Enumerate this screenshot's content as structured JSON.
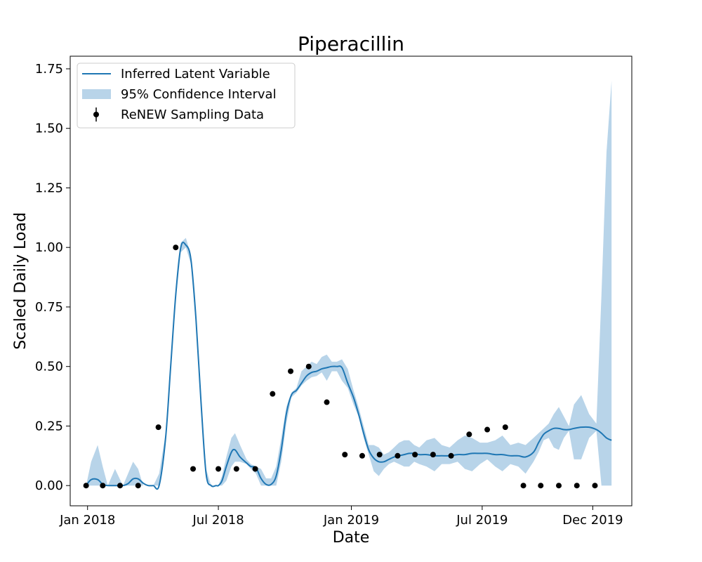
{
  "chart_data": {
    "type": "line",
    "title": "Piperacillin",
    "xlabel": "Date",
    "ylabel": "Scaled Daily Load",
    "xlim": [
      "2017-12-08",
      "2020-01-24"
    ],
    "ylim": [
      -0.085,
      1.803
    ],
    "x_ticks": [
      "2018-01-01",
      "2018-07-01",
      "2019-01-01",
      "2019-07-01",
      "2019-12-01"
    ],
    "x_tick_labels": [
      "Jan 2018",
      "Jul 2018",
      "Jan 2019",
      "Jul 2019",
      "Dec 2019"
    ],
    "y_ticks": [
      0.0,
      0.25,
      0.5,
      0.75,
      1.0,
      1.25,
      1.5,
      1.75
    ],
    "y_tick_labels": [
      "0.00",
      "0.25",
      "0.50",
      "0.75",
      "1.00",
      "1.25",
      "1.50",
      "1.75"
    ],
    "grid": false,
    "legend": {
      "placement": "upper-left",
      "entries": [
        "Inferred Latent Variable",
        "95% Confidence Interval",
        "ReNEW Sampling Data"
      ]
    },
    "colors": {
      "line": "#1f77b4",
      "band": "#b8d4e9",
      "points": "#000000",
      "axes": "#000000"
    },
    "series": [
      {
        "name": "Inferred Latent Variable",
        "kind": "line",
        "x": [
          "2017-12-30",
          "2018-01-06",
          "2018-01-15",
          "2018-01-22",
          "2018-01-29",
          "2018-02-08",
          "2018-02-19",
          "2018-02-26",
          "2018-03-05",
          "2018-03-12",
          "2018-03-19",
          "2018-03-26",
          "2018-04-02",
          "2018-04-10",
          "2018-04-19",
          "2018-04-26",
          "2018-05-03",
          "2018-05-10",
          "2018-05-17",
          "2018-05-24",
          "2018-05-31",
          "2018-06-07",
          "2018-06-14",
          "2018-06-21",
          "2018-06-28",
          "2018-07-01",
          "2018-07-06",
          "2018-07-12",
          "2018-07-19",
          "2018-07-24",
          "2018-07-31",
          "2018-08-09",
          "2018-08-15",
          "2018-08-22",
          "2018-08-29",
          "2018-09-05",
          "2018-09-12",
          "2018-09-19",
          "2018-09-26",
          "2018-10-03",
          "2018-10-10",
          "2018-10-17",
          "2018-10-24",
          "2018-10-31",
          "2018-11-07",
          "2018-11-14",
          "2018-11-21",
          "2018-11-28",
          "2018-12-05",
          "2018-12-12",
          "2018-12-19",
          "2018-12-27",
          "2019-01-04",
          "2019-01-11",
          "2019-01-18",
          "2019-01-25",
          "2019-02-01",
          "2019-02-08",
          "2019-02-15",
          "2019-02-22",
          "2019-03-01",
          "2019-03-08",
          "2019-03-15",
          "2019-03-22",
          "2019-03-29",
          "2019-04-05",
          "2019-04-15",
          "2019-04-26",
          "2019-05-06",
          "2019-05-17",
          "2019-05-28",
          "2019-06-07",
          "2019-06-17",
          "2019-06-28",
          "2019-07-08",
          "2019-07-19",
          "2019-07-29",
          "2019-08-09",
          "2019-08-20",
          "2019-08-30",
          "2019-09-10",
          "2019-09-17",
          "2019-09-24",
          "2019-10-01",
          "2019-10-08",
          "2019-10-15",
          "2019-10-22",
          "2019-10-29",
          "2019-11-05",
          "2019-11-15",
          "2019-11-26",
          "2019-12-06",
          "2019-12-13",
          "2019-12-20",
          "2019-12-27"
        ],
        "y": [
          0.0,
          0.025,
          0.025,
          0.005,
          0.0,
          0.0,
          0.0,
          0.008,
          0.028,
          0.028,
          0.01,
          0.0,
          0.0,
          0.0,
          0.2,
          0.5,
          0.8,
          1.0,
          1.01,
          0.95,
          0.7,
          0.35,
          0.05,
          0.0,
          0.0,
          0.0,
          0.02,
          0.08,
          0.14,
          0.15,
          0.12,
          0.095,
          0.08,
          0.075,
          0.03,
          0.005,
          0.005,
          0.04,
          0.15,
          0.3,
          0.38,
          0.4,
          0.43,
          0.46,
          0.475,
          0.48,
          0.49,
          0.495,
          0.5,
          0.5,
          0.495,
          0.43,
          0.37,
          0.3,
          0.22,
          0.15,
          0.115,
          0.1,
          0.1,
          0.11,
          0.12,
          0.125,
          0.13,
          0.135,
          0.135,
          0.13,
          0.13,
          0.125,
          0.125,
          0.125,
          0.13,
          0.13,
          0.135,
          0.135,
          0.135,
          0.13,
          0.13,
          0.125,
          0.125,
          0.12,
          0.14,
          0.18,
          0.215,
          0.23,
          0.24,
          0.24,
          0.235,
          0.235,
          0.24,
          0.245,
          0.245,
          0.235,
          0.22,
          0.2,
          0.19
        ]
      },
      {
        "name": "95% Confidence Interval",
        "kind": "band",
        "x": [
          "2017-12-30",
          "2018-01-06",
          "2018-01-15",
          "2018-01-22",
          "2018-01-29",
          "2018-02-08",
          "2018-02-19",
          "2018-02-26",
          "2018-03-05",
          "2018-03-12",
          "2018-03-19",
          "2018-03-26",
          "2018-04-02",
          "2018-04-10",
          "2018-04-19",
          "2018-04-26",
          "2018-05-03",
          "2018-05-10",
          "2018-05-17",
          "2018-05-24",
          "2018-05-31",
          "2018-06-07",
          "2018-06-14",
          "2018-06-21",
          "2018-06-28",
          "2018-07-01",
          "2018-07-06",
          "2018-07-12",
          "2018-07-19",
          "2018-07-24",
          "2018-07-31",
          "2018-08-09",
          "2018-08-15",
          "2018-08-22",
          "2018-08-29",
          "2018-09-05",
          "2018-09-12",
          "2018-09-19",
          "2018-09-26",
          "2018-10-03",
          "2018-10-10",
          "2018-10-17",
          "2018-10-24",
          "2018-10-31",
          "2018-11-07",
          "2018-11-14",
          "2018-11-21",
          "2018-11-28",
          "2018-12-05",
          "2018-12-12",
          "2018-12-19",
          "2018-12-27",
          "2019-01-04",
          "2019-01-11",
          "2019-01-18",
          "2019-01-25",
          "2019-02-01",
          "2019-02-08",
          "2019-02-15",
          "2019-02-22",
          "2019-03-01",
          "2019-03-08",
          "2019-03-15",
          "2019-03-22",
          "2019-03-29",
          "2019-04-05",
          "2019-04-15",
          "2019-04-26",
          "2019-05-06",
          "2019-05-17",
          "2019-05-28",
          "2019-06-07",
          "2019-06-17",
          "2019-06-28",
          "2019-07-08",
          "2019-07-19",
          "2019-07-29",
          "2019-08-09",
          "2019-08-20",
          "2019-08-30",
          "2019-09-10",
          "2019-09-17",
          "2019-09-24",
          "2019-10-01",
          "2019-10-08",
          "2019-10-15",
          "2019-10-22",
          "2019-10-29",
          "2019-11-05",
          "2019-11-15",
          "2019-11-26",
          "2019-12-06",
          "2019-12-13",
          "2019-12-20",
          "2019-12-27"
        ],
        "lower": [
          0.0,
          0.0,
          0.0,
          0.0,
          0.0,
          0.0,
          0.0,
          0.0,
          0.0,
          0.0,
          0.0,
          0.0,
          0.0,
          0.0,
          0.18,
          0.48,
          0.78,
          0.98,
          1.0,
          0.93,
          0.67,
          0.32,
          0.03,
          0.0,
          0.0,
          0.0,
          0.0,
          0.02,
          0.08,
          0.1,
          0.1,
          0.09,
          0.07,
          0.05,
          0.0,
          0.0,
          0.0,
          0.0,
          0.1,
          0.26,
          0.37,
          0.39,
          0.42,
          0.44,
          0.455,
          0.46,
          0.475,
          0.44,
          0.48,
          0.48,
          0.44,
          0.41,
          0.34,
          0.29,
          0.2,
          0.13,
          0.06,
          0.04,
          0.07,
          0.09,
          0.1,
          0.09,
          0.08,
          0.08,
          0.1,
          0.09,
          0.08,
          0.06,
          0.09,
          0.09,
          0.1,
          0.07,
          0.06,
          0.09,
          0.11,
          0.08,
          0.06,
          0.09,
          0.08,
          0.05,
          0.1,
          0.14,
          0.19,
          0.2,
          0.16,
          0.15,
          0.2,
          0.23,
          0.11,
          0.11,
          0.2,
          0.23,
          0.0,
          0.0,
          0.0
        ],
        "upper": [
          0.0,
          0.1,
          0.17,
          0.08,
          0.0,
          0.07,
          0.0,
          0.05,
          0.1,
          0.07,
          0.0,
          0.0,
          0.0,
          0.05,
          0.22,
          0.52,
          0.82,
          1.02,
          1.04,
          0.97,
          0.73,
          0.38,
          0.07,
          0.0,
          0.0,
          0.0,
          0.04,
          0.12,
          0.2,
          0.22,
          0.17,
          0.11,
          0.09,
          0.08,
          0.07,
          0.03,
          0.03,
          0.08,
          0.2,
          0.33,
          0.39,
          0.41,
          0.48,
          0.5,
          0.52,
          0.51,
          0.54,
          0.55,
          0.52,
          0.52,
          0.53,
          0.49,
          0.4,
          0.33,
          0.25,
          0.17,
          0.17,
          0.16,
          0.13,
          0.14,
          0.16,
          0.18,
          0.19,
          0.19,
          0.17,
          0.16,
          0.19,
          0.2,
          0.17,
          0.16,
          0.19,
          0.21,
          0.2,
          0.18,
          0.18,
          0.19,
          0.21,
          0.17,
          0.18,
          0.17,
          0.2,
          0.22,
          0.24,
          0.26,
          0.3,
          0.33,
          0.29,
          0.25,
          0.34,
          0.38,
          0.3,
          0.26,
          0.8,
          1.4,
          1.7
        ]
      },
      {
        "name": "ReNEW Sampling Data",
        "kind": "points",
        "x": [
          "2017-12-30",
          "2018-01-22",
          "2018-02-15",
          "2018-03-12",
          "2018-04-09",
          "2018-05-03",
          "2018-05-27",
          "2018-07-01",
          "2018-07-26",
          "2018-08-21",
          "2018-09-14",
          "2018-10-09",
          "2018-11-03",
          "2018-11-28",
          "2018-12-23",
          "2019-01-16",
          "2019-02-09",
          "2019-03-06",
          "2019-03-30",
          "2019-04-24",
          "2019-05-19",
          "2019-06-13",
          "2019-07-08",
          "2019-08-02",
          "2019-08-27",
          "2019-09-20",
          "2019-10-15",
          "2019-11-09",
          "2019-12-04"
        ],
        "y": [
          0.0,
          0.0,
          0.0,
          0.0,
          0.245,
          1.0,
          0.07,
          0.07,
          0.07,
          0.07,
          0.385,
          0.48,
          0.5,
          0.35,
          0.13,
          0.125,
          0.13,
          0.125,
          0.13,
          0.13,
          0.125,
          0.215,
          0.235,
          0.245,
          0.0,
          0.0,
          0.0,
          0.0,
          0.0
        ]
      }
    ]
  }
}
